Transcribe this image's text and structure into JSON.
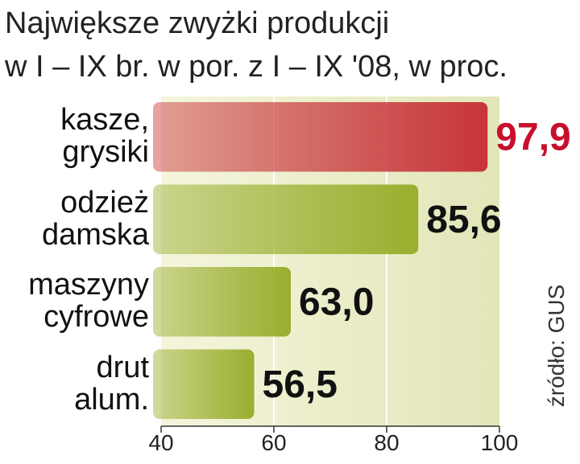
{
  "chart_data": {
    "type": "bar",
    "orientation": "horizontal",
    "title": "Największe zwyżki produkcji",
    "subtitle": "w I – IX br. w por. z I – IX '08, w proc.",
    "source": "źródło: GUS",
    "categories": [
      "kasze,\ngrysiki",
      "odzież\ndamska",
      "maszyny\ncyfrowe",
      "drut\nalum."
    ],
    "values": [
      97.9,
      85.6,
      63.0,
      56.5
    ],
    "value_labels": [
      "97,9",
      "85,6",
      "63,0",
      "56,5"
    ],
    "colors": [
      "#c8343a",
      "#9aae2e",
      "#9aae2e",
      "#9aae2e"
    ],
    "value_label_colors": [
      "#c8102e",
      "#111111",
      "#111111",
      "#111111"
    ],
    "xlim": [
      40,
      100
    ],
    "xticks": [
      40,
      60,
      80,
      100
    ],
    "grid": true
  }
}
